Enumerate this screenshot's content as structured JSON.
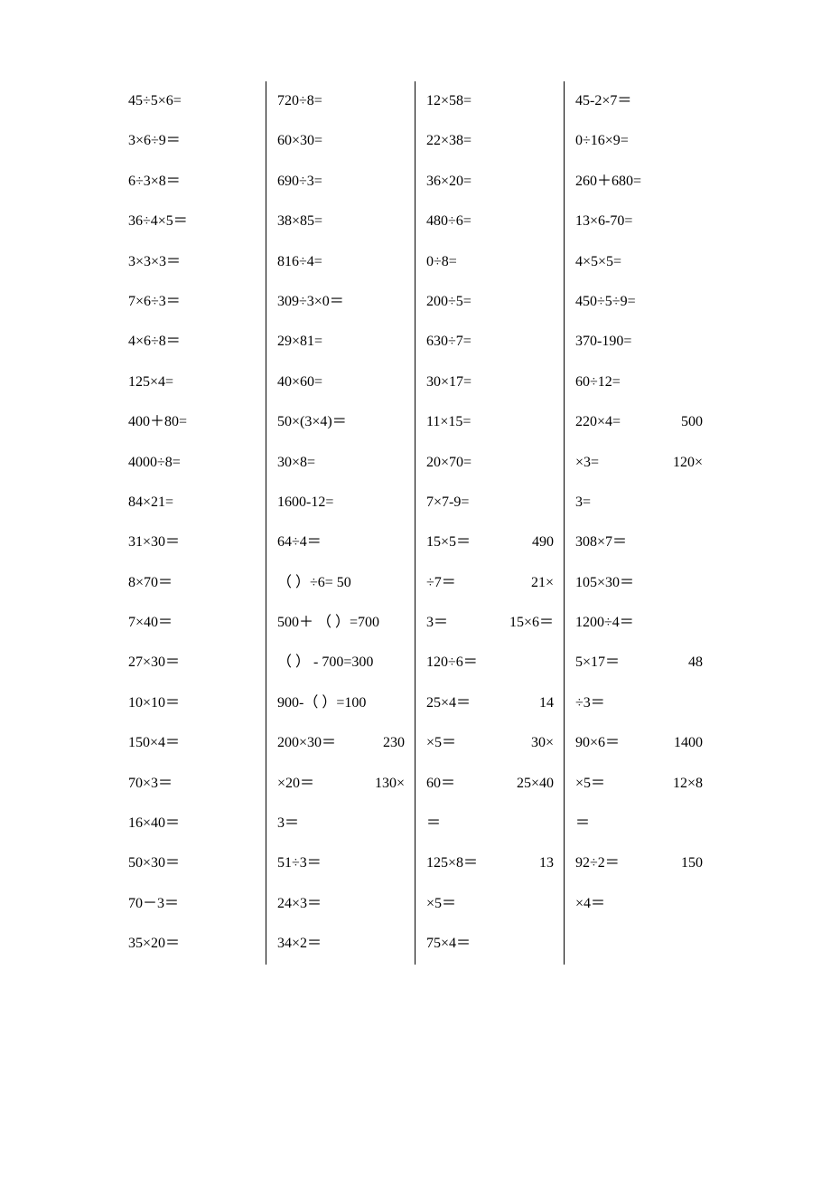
{
  "background_color": "#ffffff",
  "text_color": "#000000",
  "font_family": "SimSun",
  "font_size": 16,
  "columns": [
    {
      "lines": [
        [
          {
            "text": "45÷5×6="
          }
        ],
        [
          {
            "text": "3×6÷9＝"
          }
        ],
        [
          {
            "text": "6÷3×8＝"
          }
        ],
        [
          {
            "text": "36÷4×5＝"
          }
        ],
        [
          {
            "text": "3×3×3＝"
          }
        ],
        [
          {
            "text": "7×6÷3＝"
          }
        ],
        [
          {
            "text": "4×6÷8＝"
          }
        ],
        [
          {
            "text": "125×4="
          }
        ],
        [
          {
            "text": "400＋80="
          }
        ],
        [
          {
            "text": "4000÷8="
          }
        ],
        [
          {
            "text": "84×21="
          }
        ],
        [
          {
            "text": "31×30＝"
          }
        ],
        [
          {
            "text": "8×70＝"
          }
        ],
        [
          {
            "text": "7×40＝"
          }
        ],
        [
          {
            "text": "27×30＝"
          }
        ],
        [
          {
            "text": "10×10＝"
          }
        ],
        [
          {
            "text": "150×4＝"
          }
        ],
        [
          {
            "text": "70×3＝"
          }
        ],
        [
          {
            "text": "16×40＝"
          }
        ],
        [
          {
            "text": "50×30＝"
          }
        ],
        [
          {
            "text": "70－3＝"
          }
        ],
        [
          {
            "text": "35×20＝"
          }
        ]
      ]
    },
    {
      "lines": [
        [
          {
            "text": "720÷8="
          }
        ],
        [
          {
            "text": "60×30="
          }
        ],
        [
          {
            "text": "690÷3="
          }
        ],
        [
          {
            "text": "38×85="
          }
        ],
        [
          {
            "text": "816÷4="
          }
        ],
        [
          {
            "text": "309÷3×0＝"
          }
        ],
        [
          {
            "text": "29×81="
          }
        ],
        [
          {
            "text": "40×60="
          }
        ],
        [
          {
            "text": "50×(3×4)＝"
          }
        ],
        [
          {
            "text": "30×8="
          }
        ],
        [
          {
            "text": "1600-12="
          }
        ],
        [
          {
            "text": "64÷4＝"
          }
        ],
        [
          {
            "text": "（  ）÷6= 50"
          }
        ],
        [
          {
            "text": "500＋ （  ）=700"
          }
        ],
        [
          {
            "text": "（ ） - 700=300"
          }
        ],
        [
          {
            "text": "900-（ ）=100"
          }
        ],
        [
          {
            "text": "200×30＝"
          },
          {
            "text": "230"
          }
        ],
        [
          {
            "text": "×20＝"
          },
          {
            "text": "130×"
          }
        ],
        [
          {
            "text": "3＝"
          }
        ],
        [
          {
            "text": "51÷3＝"
          }
        ],
        [
          {
            "text": "24×3＝"
          }
        ],
        [
          {
            "text": "34×2＝"
          }
        ]
      ]
    },
    {
      "lines": [
        [
          {
            "text": "12×58="
          }
        ],
        [
          {
            "text": "22×38="
          }
        ],
        [
          {
            "text": "36×20="
          }
        ],
        [
          {
            "text": "480÷6="
          }
        ],
        [
          {
            "text": "0÷8="
          }
        ],
        [
          {
            "text": "200÷5="
          }
        ],
        [
          {
            "text": "630÷7="
          }
        ],
        [
          {
            "text": "30×17="
          }
        ],
        [
          {
            "text": "11×15="
          }
        ],
        [
          {
            "text": "20×70="
          }
        ],
        [
          {
            "text": "7×7-9="
          }
        ],
        [
          {
            "text": "15×5＝"
          },
          {
            "text": "490"
          }
        ],
        [
          {
            "text": "÷7＝"
          },
          {
            "text": "21×"
          }
        ],
        [
          {
            "text": "3＝"
          },
          {
            "text": "15×6＝"
          }
        ],
        [
          {
            "text": "120÷6＝"
          }
        ],
        [
          {
            "text": "25×4＝"
          },
          {
            "text": "14"
          }
        ],
        [
          {
            "text": "×5＝"
          },
          {
            "text": "30×"
          }
        ],
        [
          {
            "text": "60＝"
          },
          {
            "text": "25×40"
          }
        ],
        [
          {
            "text": "＝"
          }
        ],
        [
          {
            "text": "125×8＝"
          },
          {
            "text": "13"
          }
        ],
        [
          {
            "text": "×5＝"
          }
        ],
        [
          {
            "text": "75×4＝"
          }
        ]
      ]
    },
    {
      "lines": [
        [
          {
            "text": "45-2×7＝"
          }
        ],
        [
          {
            "text": "0÷16×9="
          }
        ],
        [
          {
            "text": "260＋680="
          }
        ],
        [
          {
            "text": "13×6-70="
          }
        ],
        [
          {
            "text": "4×5×5="
          }
        ],
        [
          {
            "text": "450÷5÷9="
          }
        ],
        [
          {
            "text": "370-190="
          }
        ],
        [
          {
            "text": "60÷12="
          }
        ],
        [
          {
            "text": "220×4="
          },
          {
            "text": "500"
          }
        ],
        [
          {
            "text": "×3="
          },
          {
            "text": "120×"
          }
        ],
        [
          {
            "text": "3="
          }
        ],
        [
          {
            "text": "308×7＝"
          }
        ],
        [
          {
            "text": "105×30＝"
          }
        ],
        [
          {
            "text": "1200÷4＝"
          }
        ],
        [
          {
            "text": "5×17＝"
          },
          {
            "text": "48"
          }
        ],
        [
          {
            "text": "÷3＝"
          }
        ],
        [
          {
            "text": "90×6＝"
          },
          {
            "text": "1400"
          }
        ],
        [
          {
            "text": "×5＝"
          },
          {
            "text": "12×8"
          }
        ],
        [
          {
            "text": "＝"
          }
        ],
        [
          {
            "text": "92÷2＝"
          },
          {
            "text": "150"
          }
        ],
        [
          {
            "text": "×4＝"
          }
        ]
      ]
    }
  ]
}
